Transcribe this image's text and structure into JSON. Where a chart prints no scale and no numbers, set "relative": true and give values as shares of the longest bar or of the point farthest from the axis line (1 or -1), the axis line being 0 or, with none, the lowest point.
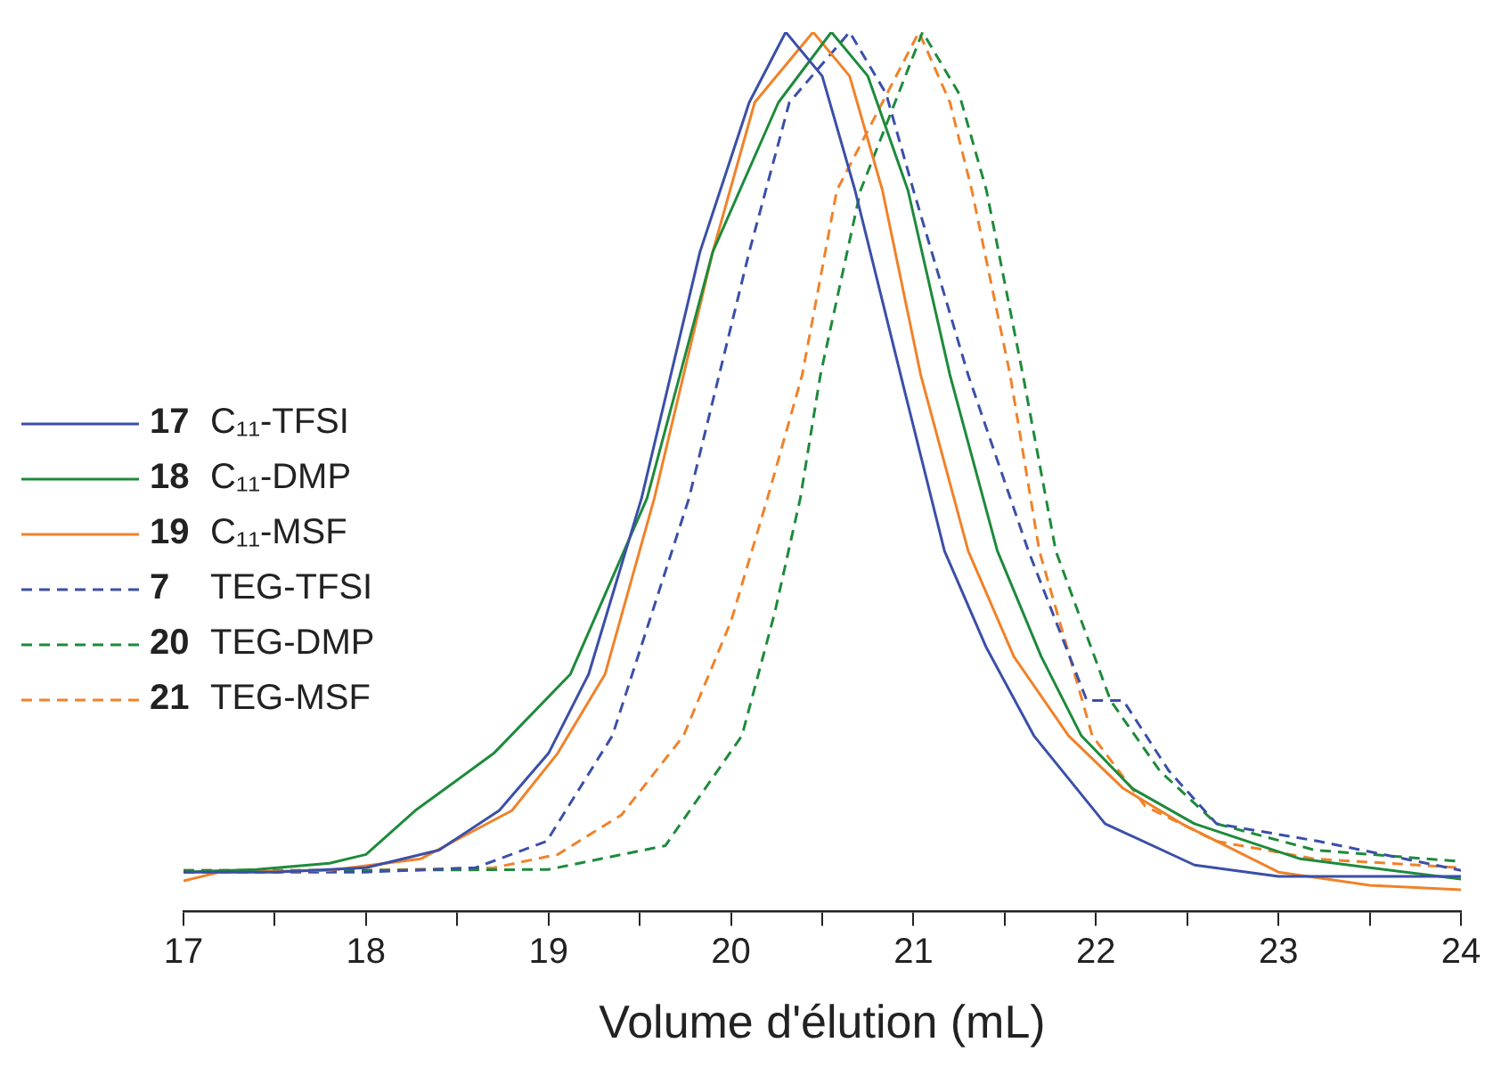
{
  "chart_data": {
    "type": "line",
    "xlabel": "Volume d'élution (mL)",
    "relative": true,
    "xlim": [
      17,
      24
    ],
    "xticks": [
      17,
      {
        "value": 17.5,
        "label": null
      },
      18,
      {
        "value": 18.5,
        "label": null
      },
      19,
      {
        "value": 19.5,
        "label": null
      },
      20,
      {
        "value": 20.5,
        "label": null
      },
      21,
      {
        "value": 21.5,
        "label": null
      },
      22,
      {
        "value": 22.5,
        "label": null
      },
      23,
      {
        "value": 23.5,
        "label": null
      },
      24
    ],
    "grid": false,
    "legend": "left",
    "marker": "none",
    "series": [
      {
        "name": "17 C₁₁-TFSI",
        "color": "#3b4fa8",
        "line_style": "solid",
        "x": [
          17,
          17.5,
          18,
          18.4,
          18.73,
          19.0,
          19.22,
          19.51,
          19.83,
          20.1,
          20.3,
          20.5,
          20.68,
          20.93,
          21.17,
          21.4,
          21.66,
          22.05,
          22.54,
          23,
          24
        ],
        "values": [
          0.045,
          0.045,
          0.05,
          0.07,
          0.115,
          0.18,
          0.27,
          0.47,
          0.75,
          0.92,
          1,
          0.95,
          0.82,
          0.61,
          0.41,
          0.3,
          0.2,
          0.1,
          0.053,
          0.04,
          0.04
        ]
      },
      {
        "name": "18 C₁₁-DMP",
        "color": "#1e8a3c",
        "line_style": "solid",
        "x": [
          17,
          17.4,
          17.8,
          18.0,
          18.27,
          18.7,
          19.12,
          19.54,
          19.9,
          20.26,
          20.55,
          20.75,
          20.97,
          21.2,
          21.46,
          21.7,
          21.92,
          22.2,
          22.54,
          23.12,
          24
        ],
        "values": [
          0.045,
          0.048,
          0.055,
          0.065,
          0.115,
          0.18,
          0.27,
          0.47,
          0.75,
          0.92,
          1,
          0.95,
          0.82,
          0.61,
          0.41,
          0.29,
          0.2,
          0.14,
          0.1,
          0.06,
          0.037
        ]
      },
      {
        "name": "19 C₁₁-MSF",
        "color": "#f0822a",
        "line_style": "solid",
        "x": [
          17,
          17.2,
          17.8,
          18.3,
          18.8,
          19.05,
          19.31,
          19.58,
          19.9,
          20.13,
          20.45,
          20.65,
          20.83,
          21.04,
          21.3,
          21.55,
          21.85,
          22.15,
          22.47,
          23,
          23.5,
          24
        ],
        "values": [
          0.035,
          0.045,
          0.047,
          0.06,
          0.115,
          0.18,
          0.27,
          0.47,
          0.75,
          0.92,
          1,
          0.95,
          0.82,
          0.61,
          0.41,
          0.29,
          0.2,
          0.14,
          0.1,
          0.045,
          0.03,
          0.025
        ]
      },
      {
        "name": "7 TEG-TFSI",
        "color": "#3b4fa8",
        "line_style": "dashed",
        "x": [
          17,
          18,
          18.6,
          18.99,
          19.35,
          19.77,
          20.1,
          20.32,
          20.65,
          20.85,
          21.0,
          21.3,
          21.63,
          21.95,
          22.15,
          22.4,
          22.66,
          23.22,
          24
        ],
        "values": [
          0.045,
          0.045,
          0.05,
          0.08,
          0.2,
          0.47,
          0.75,
          0.92,
          1,
          0.93,
          0.82,
          0.61,
          0.41,
          0.24,
          0.24,
          0.16,
          0.1,
          0.08,
          0.047
        ]
      },
      {
        "name": "20 TEG-DMP",
        "color": "#1e8a3c",
        "line_style": "dashed",
        "x": [
          17,
          18,
          19,
          19.64,
          20.06,
          20.24,
          20.38,
          20.49,
          20.71,
          21.05,
          21.25,
          21.4,
          21.6,
          21.78,
          22.08,
          22.35,
          22.66,
          23.2,
          24
        ],
        "values": [
          0.047,
          0.047,
          0.048,
          0.075,
          0.2,
          0.34,
          0.47,
          0.61,
          0.82,
          1,
          0.93,
          0.82,
          0.61,
          0.41,
          0.24,
          0.16,
          0.1,
          0.07,
          0.057
        ]
      },
      {
        "name": "21 TEG-MSF",
        "color": "#f0822a",
        "line_style": "dashed",
        "x": [
          17,
          18,
          18.7,
          19.05,
          19.4,
          19.74,
          20.0,
          20.2,
          20.39,
          20.58,
          21.03,
          21.2,
          21.32,
          21.53,
          21.69,
          21.98,
          22.27,
          22.66,
          23.2,
          24
        ],
        "values": [
          0.047,
          0.047,
          0.05,
          0.065,
          0.11,
          0.2,
          0.33,
          0.47,
          0.61,
          0.82,
          1,
          0.92,
          0.82,
          0.61,
          0.41,
          0.2,
          0.12,
          0.08,
          0.06,
          0.05
        ]
      }
    ]
  }
}
